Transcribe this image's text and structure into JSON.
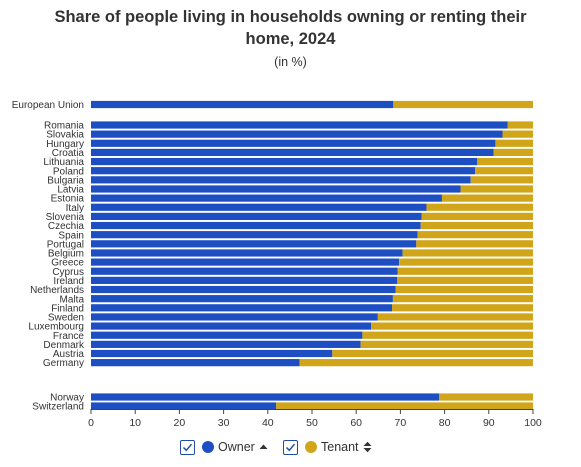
{
  "chart_data": {
    "type": "bar",
    "orientation": "horizontal",
    "stacked": true,
    "title": "Share of people living in households owning or renting their home, 2024",
    "title_lines": [
      "Share of people living in households owning or renting their",
      "home, 2024"
    ],
    "subtitle": "(in %)",
    "categories": [
      "European Union",
      "Romania",
      "Slovakia",
      "Hungary",
      "Croatia",
      "Lithuania",
      "Poland",
      "Bulgaria",
      "Latvia",
      "Estonia",
      "Italy",
      "Slovenia",
      "Czechia",
      "Spain",
      "Portugal",
      "Belgium",
      "Greece",
      "Cyprus",
      "Ireland",
      "Netherlands",
      "Malta",
      "Finland",
      "Sweden",
      "Luxembourg",
      "France",
      "Denmark",
      "Austria",
      "Germany",
      "Norway",
      "Switzerland"
    ],
    "series": [
      {
        "name": "Owner",
        "color": "#1e4fc2",
        "values": [
          68.4,
          94.3,
          93.1,
          91.5,
          91.1,
          87.4,
          86.9,
          85.9,
          83.6,
          79.4,
          75.9,
          74.8,
          74.6,
          73.9,
          73.6,
          70.5,
          69.7,
          69.4,
          69.3,
          68.9,
          68.3,
          68.1,
          64.9,
          63.4,
          61.4,
          61.0,
          54.6,
          47.2,
          78.8,
          41.9
        ]
      },
      {
        "name": "Tenant",
        "color": "#d1a51a",
        "values": [
          31.6,
          5.7,
          6.9,
          8.5,
          8.9,
          12.6,
          13.1,
          14.1,
          16.4,
          20.6,
          24.1,
          25.2,
          25.4,
          26.1,
          26.4,
          29.5,
          30.3,
          30.6,
          30.7,
          31.1,
          31.7,
          31.9,
          35.1,
          36.6,
          38.6,
          39.0,
          45.4,
          52.8,
          21.2,
          58.1
        ]
      }
    ],
    "xlim": [
      0,
      100
    ],
    "x_ticks": [
      0,
      10,
      20,
      30,
      40,
      50,
      60,
      70,
      80,
      90,
      100
    ],
    "xlabel": "",
    "ylabel": "",
    "grid": false,
    "legend_position": "bottom"
  },
  "legend": {
    "items": [
      {
        "label": "Owner",
        "color": "#1e4fc2",
        "checked": true,
        "sort_icon": "sort-ascending-icon"
      },
      {
        "label": "Tenant",
        "color": "#d1a51a",
        "checked": true,
        "sort_icon": "sort-both-icon"
      }
    ]
  }
}
